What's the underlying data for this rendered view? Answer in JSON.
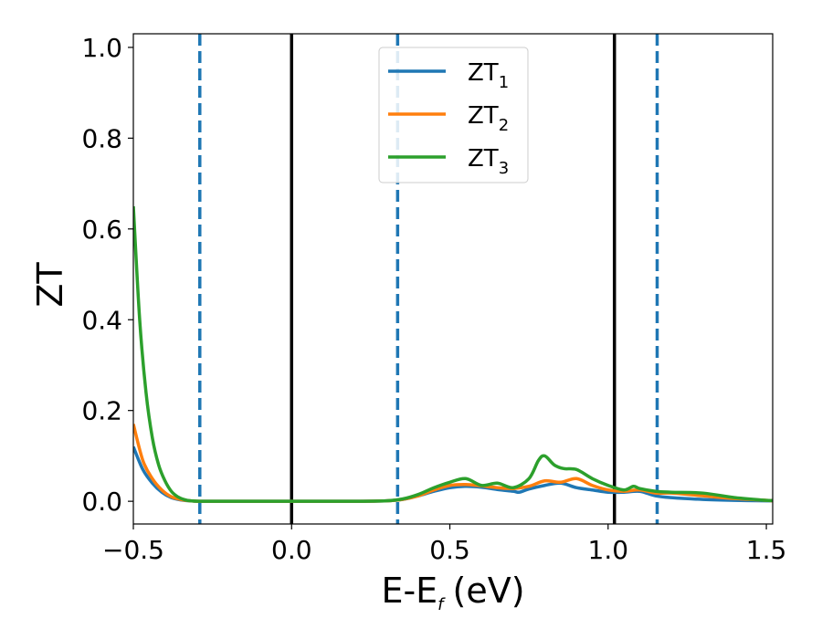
{
  "chart_data": {
    "type": "line",
    "xlabel": "E-E",
    "xlabel_sub": "f",
    "xlabel_unit": "(eV)",
    "ylabel": "ZT",
    "xlim": [
      -0.5,
      1.52
    ],
    "ylim": [
      -0.05,
      1.03
    ],
    "x_ticks": [
      -0.5,
      0.0,
      0.5,
      1.0,
      1.5
    ],
    "x_tick_labels": [
      "−0.5",
      "0.0",
      "0.5",
      "1.0",
      "1.5"
    ],
    "y_ticks": [
      0.0,
      0.2,
      0.4,
      0.6,
      0.8,
      1.0
    ],
    "y_tick_labels": [
      "0.0",
      "0.2",
      "0.4",
      "0.6",
      "0.8",
      "1.0"
    ],
    "grid": false,
    "legend_position": "upper-center",
    "vertical_lines": [
      {
        "x": -0.29,
        "style": "dashed",
        "color": "#1f77b4"
      },
      {
        "x": 0.0,
        "style": "solid",
        "color": "#000000"
      },
      {
        "x": 0.335,
        "style": "dashed",
        "color": "#1f77b4"
      },
      {
        "x": 1.02,
        "style": "solid",
        "color": "#000000"
      },
      {
        "x": 1.155,
        "style": "dashed",
        "color": "#1f77b4"
      }
    ],
    "series": [
      {
        "name": "ZT",
        "sub": "1",
        "color": "#1f77b4",
        "x": [
          -0.5,
          -0.47,
          -0.44,
          -0.41,
          -0.38,
          -0.35,
          -0.32,
          -0.29,
          -0.2,
          0.0,
          0.2,
          0.3,
          0.35,
          0.4,
          0.45,
          0.5,
          0.55,
          0.6,
          0.65,
          0.7,
          0.72,
          0.75,
          0.8,
          0.85,
          0.9,
          0.95,
          1.0,
          1.05,
          1.1,
          1.15,
          1.2,
          1.3,
          1.4,
          1.5,
          1.52
        ],
        "y": [
          0.12,
          0.07,
          0.04,
          0.02,
          0.008,
          0.003,
          0.001,
          0.0,
          0.0,
          0.0,
          0.0,
          0.001,
          0.004,
          0.012,
          0.022,
          0.03,
          0.033,
          0.031,
          0.026,
          0.022,
          0.02,
          0.027,
          0.035,
          0.04,
          0.03,
          0.025,
          0.02,
          0.02,
          0.022,
          0.012,
          0.008,
          0.004,
          0.002,
          0.001,
          0.001
        ]
      },
      {
        "name": "ZT",
        "sub": "2",
        "color": "#ff7f0e",
        "x": [
          -0.5,
          -0.47,
          -0.44,
          -0.41,
          -0.38,
          -0.35,
          -0.32,
          -0.29,
          -0.2,
          0.0,
          0.2,
          0.3,
          0.35,
          0.4,
          0.45,
          0.5,
          0.55,
          0.6,
          0.65,
          0.7,
          0.75,
          0.8,
          0.85,
          0.9,
          0.95,
          1.0,
          1.05,
          1.1,
          1.15,
          1.2,
          1.3,
          1.4,
          1.5,
          1.52
        ],
        "y": [
          0.17,
          0.09,
          0.05,
          0.025,
          0.01,
          0.004,
          0.001,
          0.0,
          0.0,
          0.0,
          0.0,
          0.001,
          0.004,
          0.012,
          0.025,
          0.035,
          0.037,
          0.034,
          0.03,
          0.028,
          0.033,
          0.045,
          0.042,
          0.05,
          0.035,
          0.025,
          0.022,
          0.025,
          0.018,
          0.018,
          0.012,
          0.006,
          0.002,
          0.001
        ]
      },
      {
        "name": "ZT",
        "sub": "3",
        "color": "#2ca02c",
        "x": [
          -0.5,
          -0.48,
          -0.46,
          -0.44,
          -0.42,
          -0.4,
          -0.38,
          -0.36,
          -0.34,
          -0.32,
          -0.29,
          -0.2,
          0.0,
          0.2,
          0.3,
          0.35,
          0.4,
          0.45,
          0.5,
          0.55,
          0.6,
          0.65,
          0.7,
          0.75,
          0.78,
          0.8,
          0.83,
          0.86,
          0.9,
          0.95,
          1.0,
          1.05,
          1.08,
          1.1,
          1.15,
          1.2,
          1.3,
          1.4,
          1.5,
          1.52
        ],
        "y": [
          0.65,
          0.4,
          0.24,
          0.14,
          0.08,
          0.045,
          0.022,
          0.01,
          0.004,
          0.001,
          0.0,
          0.0,
          0.0,
          0.0,
          0.001,
          0.005,
          0.015,
          0.03,
          0.042,
          0.05,
          0.035,
          0.04,
          0.03,
          0.05,
          0.09,
          0.1,
          0.08,
          0.072,
          0.07,
          0.05,
          0.035,
          0.025,
          0.033,
          0.028,
          0.022,
          0.02,
          0.018,
          0.008,
          0.002,
          0.002
        ]
      }
    ]
  }
}
